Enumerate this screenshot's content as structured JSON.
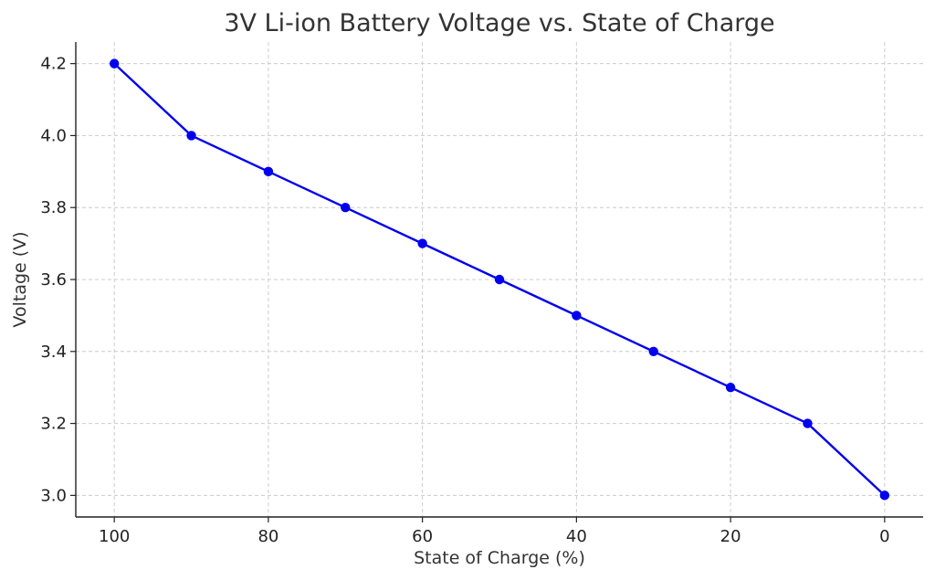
{
  "chart_data": {
    "type": "line",
    "title": "3V Li-ion Battery Voltage vs. State of Charge",
    "xlabel": "State of Charge (%)",
    "ylabel": "Voltage (V)",
    "x_reversed": true,
    "xlim": [
      105,
      -5
    ],
    "ylim": [
      2.94,
      4.26
    ],
    "xticks": [
      100,
      80,
      60,
      40,
      20,
      0
    ],
    "xtick_labels": [
      "100",
      "80",
      "60",
      "40",
      "20",
      "0"
    ],
    "yticks": [
      3.0,
      3.2,
      3.4,
      3.6,
      3.8,
      4.0,
      4.2
    ],
    "ytick_labels": [
      "3.0",
      "3.2",
      "3.4",
      "3.6",
      "3.8",
      "4.0",
      "4.2"
    ],
    "grid": true,
    "series": [
      {
        "color": "#0000ee",
        "marker": "circle",
        "x": [
          100,
          90,
          80,
          70,
          60,
          50,
          40,
          30,
          20,
          10,
          0
        ],
        "y": [
          4.2,
          4.0,
          3.9,
          3.8,
          3.7,
          3.6,
          3.5,
          3.4,
          3.3,
          3.2,
          3.0
        ]
      }
    ]
  }
}
